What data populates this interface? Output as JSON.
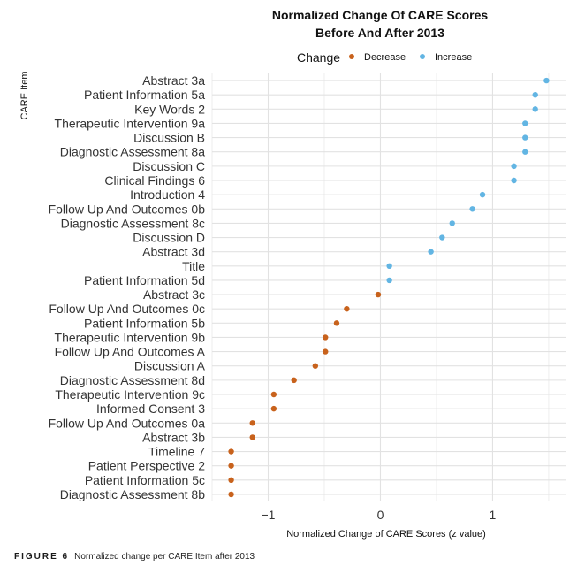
{
  "chart_data": {
    "type": "scatter",
    "title_line1": "Normalized Change Of CARE Scores",
    "title_line2": "Before And After 2013",
    "xlabel": "Normalized Change of CARE Scores (z value)",
    "ylabel": "CARE Item",
    "xlim": [
      -1.5,
      1.65
    ],
    "xticks": [
      -1,
      0,
      1
    ],
    "xtick_labels": [
      "−1",
      "0",
      "1"
    ],
    "grid": true,
    "legend": {
      "title": "Change",
      "position": "top",
      "entries": [
        {
          "name": "Decrease",
          "color": "#c8621c"
        },
        {
          "name": "Increase",
          "color": "#62b5e3"
        }
      ]
    },
    "categories": [
      "Abstract 3a",
      "Patient Information 5a",
      "Key Words 2",
      "Therapeutic Intervention 9a",
      "Discussion B",
      "Diagnostic Assessment 8a",
      "Discussion C",
      "Clinical Findings 6",
      "Introduction 4",
      "Follow Up And Outcomes 0b",
      "Diagnostic Assessment 8c",
      "Discussion D",
      "Abstract 3d",
      "Title",
      "Patient Information 5d",
      "Abstract 3c",
      "Follow Up And Outcomes 0c",
      "Patient Information 5b",
      "Therapeutic Intervention 9b",
      "Follow Up And Outcomes A",
      "Discussion A",
      "Diagnostic Assessment 8d",
      "Therapeutic Intervention 9c",
      "Informed Consent 3",
      "Follow Up And Outcomes 0a",
      "Abstract 3b",
      "Timeline 7",
      "Patient Perspective 2",
      "Patient Information 5c",
      "Diagnostic Assessment 8b"
    ],
    "values": [
      1.48,
      1.38,
      1.38,
      1.29,
      1.29,
      1.29,
      1.19,
      1.19,
      0.91,
      0.82,
      0.64,
      0.55,
      0.45,
      0.08,
      0.08,
      -0.02,
      -0.3,
      -0.39,
      -0.49,
      -0.49,
      -0.58,
      -0.77,
      -0.95,
      -0.95,
      -1.14,
      -1.14,
      -1.33,
      -1.33,
      -1.33,
      -1.33
    ],
    "change": [
      "Increase",
      "Increase",
      "Increase",
      "Increase",
      "Increase",
      "Increase",
      "Increase",
      "Increase",
      "Increase",
      "Increase",
      "Increase",
      "Increase",
      "Increase",
      "Increase",
      "Increase",
      "Decrease",
      "Decrease",
      "Decrease",
      "Decrease",
      "Decrease",
      "Decrease",
      "Decrease",
      "Decrease",
      "Decrease",
      "Decrease",
      "Decrease",
      "Decrease",
      "Decrease",
      "Decrease",
      "Decrease"
    ]
  },
  "caption": {
    "figure_label": "FIGURE 6",
    "text": "Normalized change per CARE Item after 2013"
  },
  "colors": {
    "grid": "#e2e2e2",
    "decrease": "#c8621c",
    "increase": "#62b5e3"
  }
}
